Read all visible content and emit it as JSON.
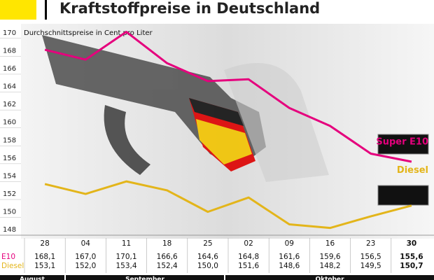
{
  "chart_data": {
    "type": "line",
    "title": "Kraftstoffpreise in Deutschland",
    "subtitle": "Durchschnittspreise in Cent pro Liter",
    "categories": [
      "28",
      "04",
      "11",
      "18",
      "25",
      "02",
      "09",
      "16",
      "23",
      "30"
    ],
    "months": [
      "August",
      "September",
      "Oktober"
    ],
    "row_labels": [
      "E10",
      "Diesel"
    ],
    "series": [
      {
        "name": "Super E10",
        "color": "#e5007d",
        "values": [
          168.1,
          167.0,
          170.1,
          166.6,
          164.6,
          164.8,
          161.6,
          159.6,
          156.5,
          155.6
        ],
        "value_labels": [
          "168,1",
          "167,0",
          "170,1",
          "166,6",
          "164,6",
          "164,8",
          "161,6",
          "159,6",
          "156,5",
          "155,6"
        ]
      },
      {
        "name": "Diesel",
        "color": "#e3b51a",
        "values": [
          153.1,
          152.0,
          153.4,
          152.4,
          150.0,
          151.6,
          148.6,
          148.2,
          149.5,
          150.7
        ],
        "value_labels": [
          "153,1",
          "152,0",
          "153,4",
          "152,4",
          "150,0",
          "151,6",
          "148,6",
          "148,2",
          "149,5",
          "150,7"
        ]
      }
    ],
    "ylim": [
      147,
      171
    ],
    "yticks": [
      148,
      150,
      152,
      154,
      156,
      158,
      160,
      162,
      164,
      166,
      168,
      170
    ]
  }
}
